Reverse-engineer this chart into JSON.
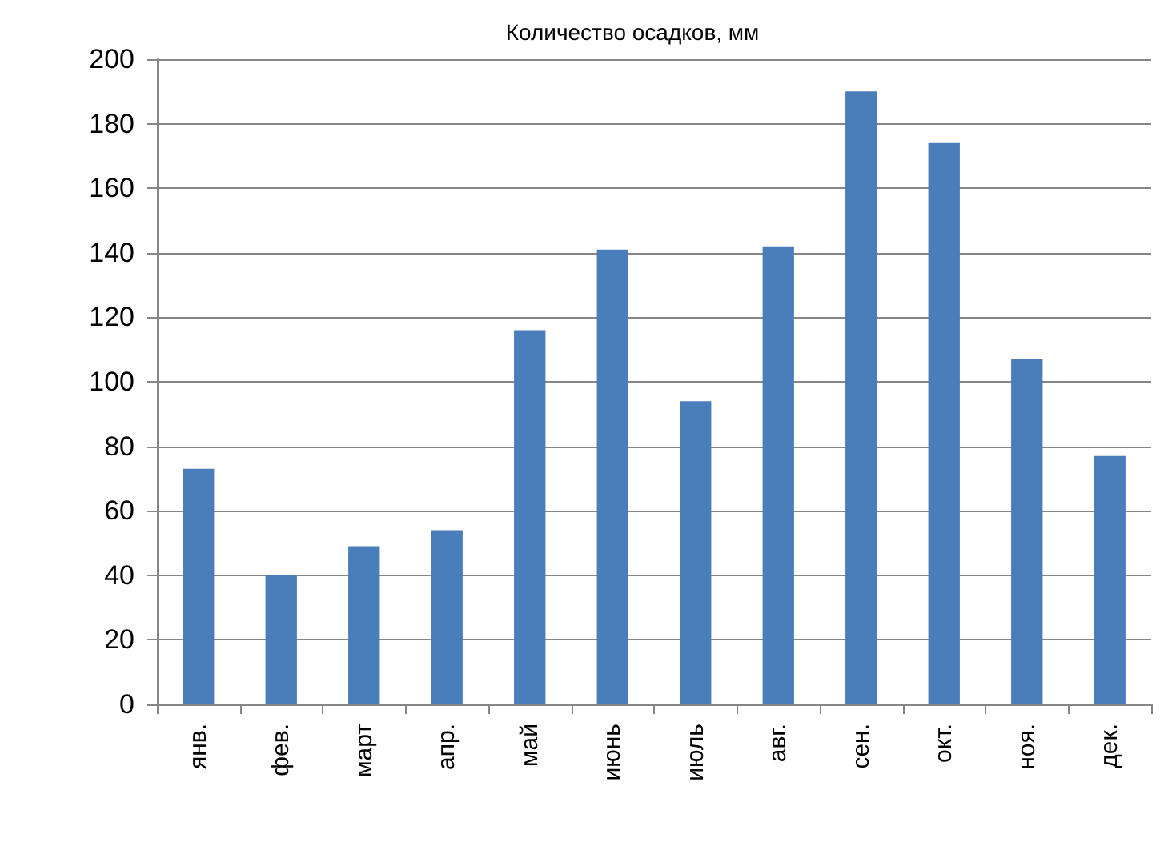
{
  "chart_data": {
    "type": "bar",
    "title": "Количество осадков, мм",
    "categories": [
      "янв.",
      "фев.",
      "март",
      "апр.",
      "май",
      "июнь",
      "июль",
      "авг.",
      "сен.",
      "окт.",
      "ноя.",
      "дек."
    ],
    "values": [
      73,
      40,
      49,
      54,
      116,
      141,
      94,
      142,
      190,
      174,
      107,
      77
    ],
    "color": "#4a7ebb",
    "ylim": [
      0,
      200
    ],
    "yticks": [
      0,
      20,
      40,
      60,
      80,
      100,
      120,
      140,
      160,
      180,
      200
    ],
    "grid": "y"
  }
}
